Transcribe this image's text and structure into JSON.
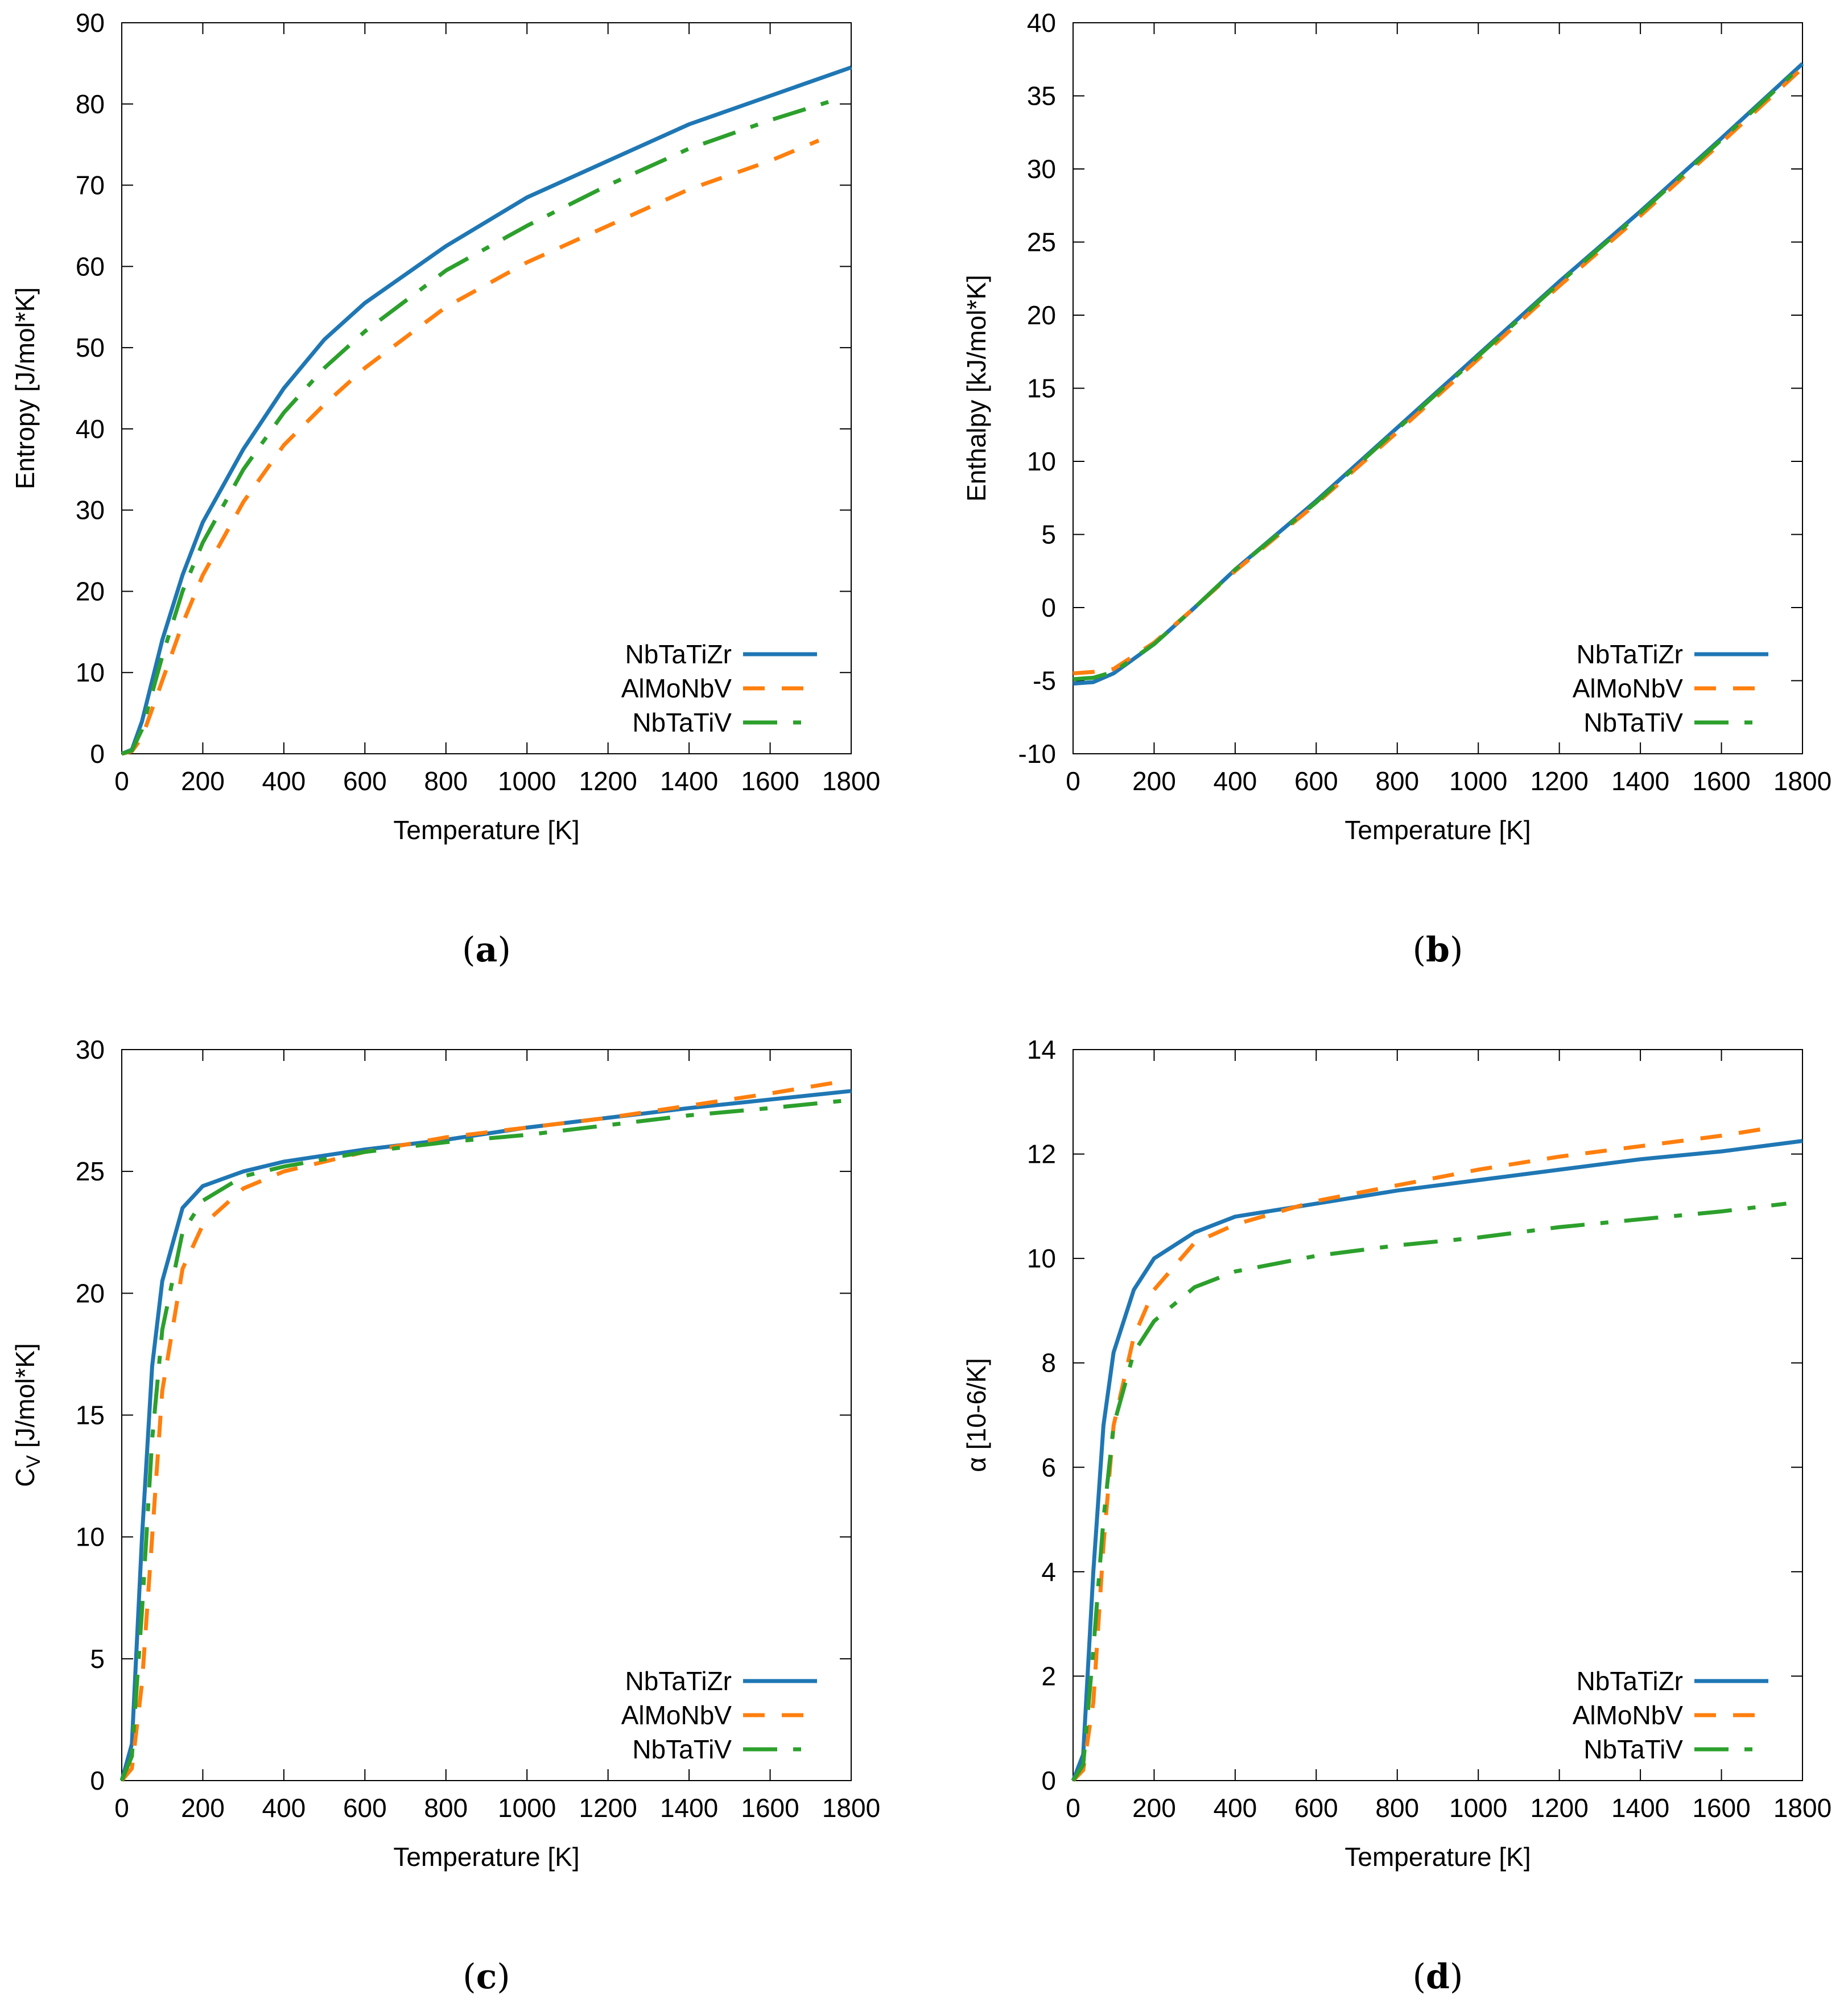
{
  "chart_data": [
    {
      "id": "a",
      "caption_letter": "a",
      "type": "line",
      "xlabel": "Temperature [K]",
      "ylabel": "Entropy [J/mol*K]",
      "ylabel_parts": [
        {
          "t": "Entropy [J/mol*K]"
        }
      ],
      "xlim": [
        0,
        1800
      ],
      "ylim": [
        0,
        90
      ],
      "xticks": [
        0,
        200,
        400,
        600,
        800,
        1000,
        1200,
        1400,
        1600,
        1800
      ],
      "yticks": [
        0,
        10,
        20,
        30,
        40,
        50,
        60,
        70,
        80,
        90
      ],
      "legend": "bottom-right",
      "series": [
        {
          "name": "NbTaTiZr",
          "color": "#1f77b4",
          "style": "solid",
          "x": [
            0,
            25,
            50,
            100,
            150,
            200,
            300,
            400,
            500,
            600,
            800,
            1000,
            1200,
            1400,
            1600,
            1800
          ],
          "y": [
            0,
            0.5,
            4,
            14,
            22,
            28.5,
            37.5,
            45,
            51,
            55.5,
            62.5,
            68.5,
            73,
            77.5,
            81,
            84.5
          ]
        },
        {
          "name": "AlMoNbV",
          "color": "#ff7f0e",
          "style": "dashed",
          "x": [
            0,
            25,
            50,
            100,
            150,
            200,
            300,
            400,
            500,
            600,
            800,
            1000,
            1200,
            1400,
            1600,
            1720
          ],
          "y": [
            0,
            0.3,
            2,
            9,
            16,
            22,
            31,
            38,
            43,
            47.5,
            55,
            60.5,
            65,
            69.5,
            73,
            75.5
          ]
        },
        {
          "name": "NbTaTiV",
          "color": "#2ca02c",
          "style": "dash-dot",
          "x": [
            0,
            25,
            50,
            100,
            150,
            200,
            300,
            400,
            500,
            600,
            800,
            1000,
            1200,
            1400,
            1600,
            1760
          ],
          "y": [
            0,
            0.4,
            3,
            12,
            20,
            26,
            35,
            42,
            47.5,
            52,
            59.5,
            65,
            70,
            74.5,
            78,
            80.5
          ]
        }
      ]
    },
    {
      "id": "b",
      "caption_letter": "b",
      "type": "line",
      "xlabel": "Temperature [K]",
      "ylabel": "Enthalpy [kJ/mol*K]",
      "ylabel_parts": [
        {
          "t": "Enthalpy [kJ/mol*K]"
        }
      ],
      "xlim": [
        0,
        1800
      ],
      "ylim": [
        -10,
        40
      ],
      "xticks": [
        0,
        200,
        400,
        600,
        800,
        1000,
        1200,
        1400,
        1600,
        1800
      ],
      "yticks": [
        -10,
        -5,
        0,
        5,
        10,
        15,
        20,
        25,
        30,
        35,
        40
      ],
      "legend": "bottom-right",
      "series": [
        {
          "name": "NbTaTiZr",
          "color": "#1f77b4",
          "style": "solid",
          "x": [
            0,
            50,
            100,
            200,
            300,
            400,
            600,
            800,
            1000,
            1200,
            1400,
            1600,
            1800
          ],
          "y": [
            -5.2,
            -5.1,
            -4.5,
            -2.5,
            0,
            2.6,
            7.3,
            12.3,
            17.3,
            22.3,
            27.1,
            32.1,
            37.2
          ]
        },
        {
          "name": "AlMoNbV",
          "color": "#ff7f0e",
          "style": "dashed",
          "x": [
            0,
            50,
            100,
            200,
            300,
            400,
            600,
            800,
            1000,
            1200,
            1400,
            1600,
            1800
          ],
          "y": [
            -4.5,
            -4.4,
            -4.2,
            -2.4,
            0,
            2.5,
            7.1,
            12.0,
            17.0,
            22.0,
            26.8,
            31.8,
            36.9
          ]
        },
        {
          "name": "NbTaTiV",
          "color": "#2ca02c",
          "style": "dash-dot",
          "x": [
            0,
            50,
            100,
            200,
            300,
            400,
            600,
            800,
            1000,
            1200,
            1400,
            1600,
            1800
          ],
          "y": [
            -4.9,
            -4.8,
            -4.4,
            -2.5,
            0,
            2.6,
            7.2,
            12.2,
            17.2,
            22.2,
            27.0,
            32.0,
            37.1
          ]
        }
      ]
    },
    {
      "id": "c",
      "caption_letter": "c",
      "type": "line",
      "xlabel": "Temperature [K]",
      "ylabel": "CV [J/mol*K]",
      "ylabel_parts": [
        {
          "t": "C"
        },
        {
          "t": "V",
          "sub": true
        },
        {
          "t": " [J/mol*K]"
        }
      ],
      "xlim": [
        0,
        1800
      ],
      "ylim": [
        0,
        30
      ],
      "xticks": [
        0,
        200,
        400,
        600,
        800,
        1000,
        1200,
        1400,
        1600,
        1800
      ],
      "yticks": [
        0,
        5,
        10,
        15,
        20,
        25,
        30
      ],
      "legend": "bottom-right",
      "series": [
        {
          "name": "NbTaTiZr",
          "color": "#1f77b4",
          "style": "solid",
          "x": [
            0,
            25,
            50,
            75,
            100,
            150,
            200,
            300,
            400,
            600,
            800,
            1000,
            1200,
            1400,
            1800
          ],
          "y": [
            0,
            1.5,
            10,
            17,
            20.5,
            23.5,
            24.4,
            25,
            25.4,
            25.9,
            26.3,
            26.8,
            27.2,
            27.6,
            28.3
          ]
        },
        {
          "name": "AlMoNbV",
          "color": "#ff7f0e",
          "style": "dashed",
          "x": [
            0,
            25,
            50,
            75,
            100,
            150,
            200,
            300,
            400,
            600,
            800,
            1000,
            1200,
            1400,
            1600,
            1780
          ],
          "y": [
            0,
            0.5,
            4,
            10,
            16,
            21,
            22.8,
            24.3,
            25,
            25.8,
            26.4,
            26.8,
            27.2,
            27.7,
            28.2,
            28.7
          ]
        },
        {
          "name": "NbTaTiV",
          "color": "#2ca02c",
          "style": "dash-dot",
          "x": [
            0,
            25,
            50,
            75,
            100,
            150,
            200,
            300,
            400,
            600,
            800,
            1000,
            1200,
            1400,
            1600,
            1780
          ],
          "y": [
            0,
            1,
            7,
            14,
            18.5,
            22.5,
            23.8,
            24.8,
            25.2,
            25.8,
            26.2,
            26.5,
            26.9,
            27.3,
            27.6,
            27.9
          ]
        }
      ]
    },
    {
      "id": "d",
      "caption_letter": "d",
      "type": "line",
      "xlabel": "Temperature [K]",
      "ylabel": "α [10-6/K]",
      "ylabel_parts": [
        {
          "t": "α [10"
        },
        {
          "t": "-6",
          "sup": true
        },
        {
          "t": "/K]"
        }
      ],
      "xlim": [
        0,
        1800
      ],
      "ylim": [
        0,
        14
      ],
      "xticks": [
        0,
        200,
        400,
        600,
        800,
        1000,
        1200,
        1400,
        1600,
        1800
      ],
      "yticks": [
        0,
        2,
        4,
        6,
        8,
        10,
        12,
        14
      ],
      "legend": "bottom-right",
      "series": [
        {
          "name": "NbTaTiZr",
          "color": "#1f77b4",
          "style": "solid",
          "x": [
            0,
            25,
            50,
            75,
            100,
            150,
            200,
            300,
            400,
            600,
            800,
            1000,
            1200,
            1400,
            1600,
            1800
          ],
          "y": [
            0,
            0.5,
            4,
            6.8,
            8.2,
            9.4,
            10,
            10.5,
            10.8,
            11.05,
            11.3,
            11.5,
            11.7,
            11.9,
            12.05,
            12.25
          ]
        },
        {
          "name": "AlMoNbV",
          "color": "#ff7f0e",
          "style": "dashed",
          "x": [
            0,
            25,
            50,
            75,
            100,
            150,
            200,
            300,
            400,
            600,
            800,
            1000,
            1200,
            1400,
            1600,
            1720
          ],
          "y": [
            0,
            0.2,
            1.5,
            4.5,
            6.8,
            8.5,
            9.4,
            10.3,
            10.65,
            11.1,
            11.4,
            11.7,
            11.95,
            12.15,
            12.35,
            12.5
          ]
        },
        {
          "name": "NbTaTiV",
          "color": "#2ca02c",
          "style": "dash-dot",
          "x": [
            0,
            25,
            50,
            75,
            100,
            150,
            200,
            300,
            400,
            600,
            800,
            1000,
            1200,
            1400,
            1600,
            1760
          ],
          "y": [
            0,
            0.3,
            2.5,
            5,
            6.8,
            8.2,
            8.8,
            9.45,
            9.75,
            10.05,
            10.25,
            10.4,
            10.6,
            10.75,
            10.9,
            11.05
          ]
        }
      ]
    }
  ]
}
